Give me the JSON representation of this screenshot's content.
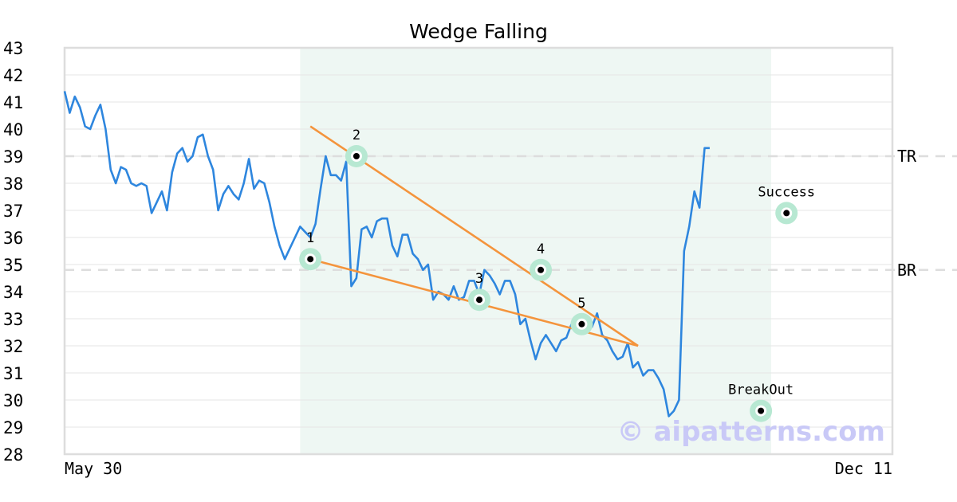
{
  "chart_data": {
    "type": "line",
    "title": "Wedge Falling",
    "xlabel": "",
    "ylabel": "",
    "ylim": [
      28,
      43
    ],
    "yticks": [
      28,
      29,
      30,
      31,
      32,
      33,
      34,
      35,
      36,
      37,
      38,
      39,
      40,
      41,
      42,
      43
    ],
    "x_tick_labels": [
      "May 30",
      "Dec 11"
    ],
    "grid": true,
    "watermark": "© aipatterns.com",
    "series": [
      {
        "color": "#2e86de",
        "values": [
          41.4,
          40.6,
          41.2,
          40.8,
          40.1,
          40.0,
          40.5,
          40.9,
          40.0,
          38.5,
          38.0,
          38.6,
          38.5,
          38.0,
          37.9,
          38.0,
          37.9,
          36.9,
          37.3,
          37.7,
          37.0,
          38.4,
          39.1,
          39.3,
          38.8,
          39.0,
          39.7,
          39.8,
          39.0,
          38.5,
          37.0,
          37.6,
          37.9,
          37.6,
          37.4,
          38.0,
          38.9,
          37.8,
          38.1,
          38.0,
          37.3,
          36.4,
          35.7,
          35.2,
          35.6,
          36.0,
          36.4,
          36.2,
          36.0,
          36.5,
          37.8,
          39.0,
          38.3,
          38.3,
          38.1,
          38.8,
          34.2,
          34.5,
          36.3,
          36.4,
          36.0,
          36.6,
          36.7,
          36.7,
          35.7,
          35.3,
          36.1,
          36.1,
          35.4,
          35.2,
          34.8,
          35.0,
          33.7,
          34.0,
          33.9,
          33.7,
          34.2,
          33.7,
          33.8,
          34.4,
          34.4,
          33.9,
          34.8,
          34.6,
          34.3,
          33.9,
          34.4,
          34.4,
          33.9,
          32.8,
          33.0,
          32.2,
          31.5,
          32.1,
          32.4,
          32.1,
          31.8,
          32.2,
          32.3,
          32.8,
          33.0,
          32.9,
          32.7,
          32.7,
          33.2,
          32.4,
          32.2,
          31.8,
          31.5,
          31.6,
          32.1,
          31.2,
          31.4,
          30.9,
          31.1,
          31.1,
          30.8,
          30.4,
          29.4,
          29.6,
          30.0,
          35.5,
          36.4,
          37.7,
          37.1,
          39.3,
          39.3
        ]
      }
    ],
    "pattern_region": {
      "start_index": 46,
      "end_index": 138,
      "fill": "#eef7f3"
    },
    "levels": [
      {
        "label": "TR",
        "value": 39.0
      },
      {
        "label": "BR",
        "value": 34.8
      }
    ],
    "trendlines": [
      {
        "color": "#f4943c",
        "from": {
          "index": 48,
          "value": 40.1
        },
        "to": {
          "index": 112,
          "value": 32.0
        }
      },
      {
        "color": "#f4943c",
        "from": {
          "index": 48,
          "value": 35.2
        },
        "to": {
          "index": 112,
          "value": 32.0
        }
      }
    ],
    "points": [
      {
        "label": "1",
        "index": 48,
        "value": 35.2,
        "label_pos": "above"
      },
      {
        "label": "2",
        "index": 57,
        "value": 39.0,
        "label_pos": "above"
      },
      {
        "label": "3",
        "index": 81,
        "value": 33.7,
        "label_pos": "above"
      },
      {
        "label": "4",
        "index": 93,
        "value": 34.8,
        "label_pos": "above"
      },
      {
        "label": "5",
        "index": 101,
        "value": 32.8,
        "label_pos": "above"
      },
      {
        "label": "BreakOut",
        "index": 136,
        "value": 29.6,
        "label_pos": "above"
      },
      {
        "label": "Success",
        "index": 141,
        "value": 36.9,
        "label_pos": "above"
      }
    ],
    "colors": {
      "marker_halo": "#b7e8d2",
      "marker_dot": "#000000",
      "level_line": "#dddddd"
    }
  }
}
